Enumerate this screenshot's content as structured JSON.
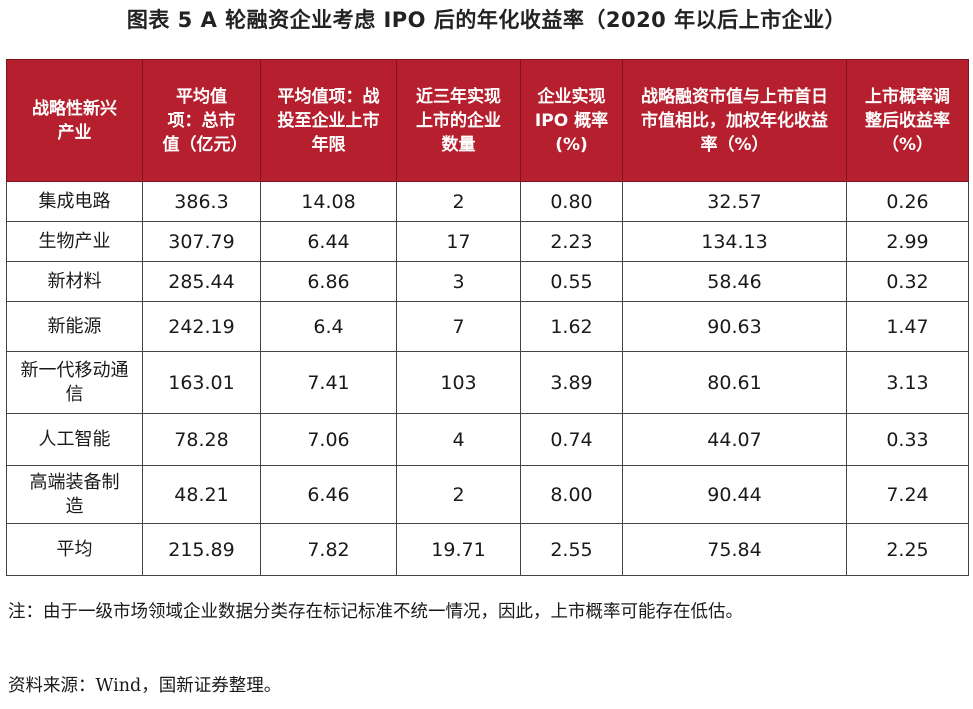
{
  "title": "图表 5  A 轮融资企业考虑 IPO 后的年化收益率（2020 年以后上市企业）",
  "table": {
    "headers": [
      "战略性新兴产业",
      "平均值项：总市值（亿元）",
      "平均值项：战投至企业上市年限",
      "近三年实现上市的企业数量",
      "企业实现 IPO 概率(%)",
      "战略融资市值与上市首日市值相比，加权年化收益率（%）",
      "上市概率调整后收益率（%）"
    ],
    "rows": [
      [
        "集成电路",
        "386.3",
        "14.08",
        "2",
        "0.80",
        "32.57",
        "0.26"
      ],
      [
        "生物产业",
        "307.79",
        "6.44",
        "17",
        "2.23",
        "134.13",
        "2.99"
      ],
      [
        "新材料",
        "285.44",
        "6.86",
        "3",
        "0.55",
        "58.46",
        "0.32"
      ],
      [
        "新能源",
        "242.19",
        "6.4",
        "7",
        "1.62",
        "90.63",
        "1.47"
      ],
      [
        "新一代移动通信",
        "163.01",
        "7.41",
        "103",
        "3.89",
        "80.61",
        "3.13"
      ],
      [
        "人工智能",
        "78.28",
        "7.06",
        "4",
        "0.74",
        "44.07",
        "0.33"
      ],
      [
        "高端装备制造",
        "48.21",
        "6.46",
        "2",
        "8.00",
        "90.44",
        "7.24"
      ],
      [
        "平均",
        "215.89",
        "7.82",
        "19.71",
        "2.55",
        "75.84",
        "2.25"
      ]
    ]
  },
  "note": "注：由于一级市场领域企业数据分类存在标记标准不统一情况，因此，上市概率可能存在低估。",
  "source": "资料来源：Wind，国新证券整理。",
  "colors": {
    "header_bg": "#b51f2e",
    "header_text": "#ffffff"
  }
}
